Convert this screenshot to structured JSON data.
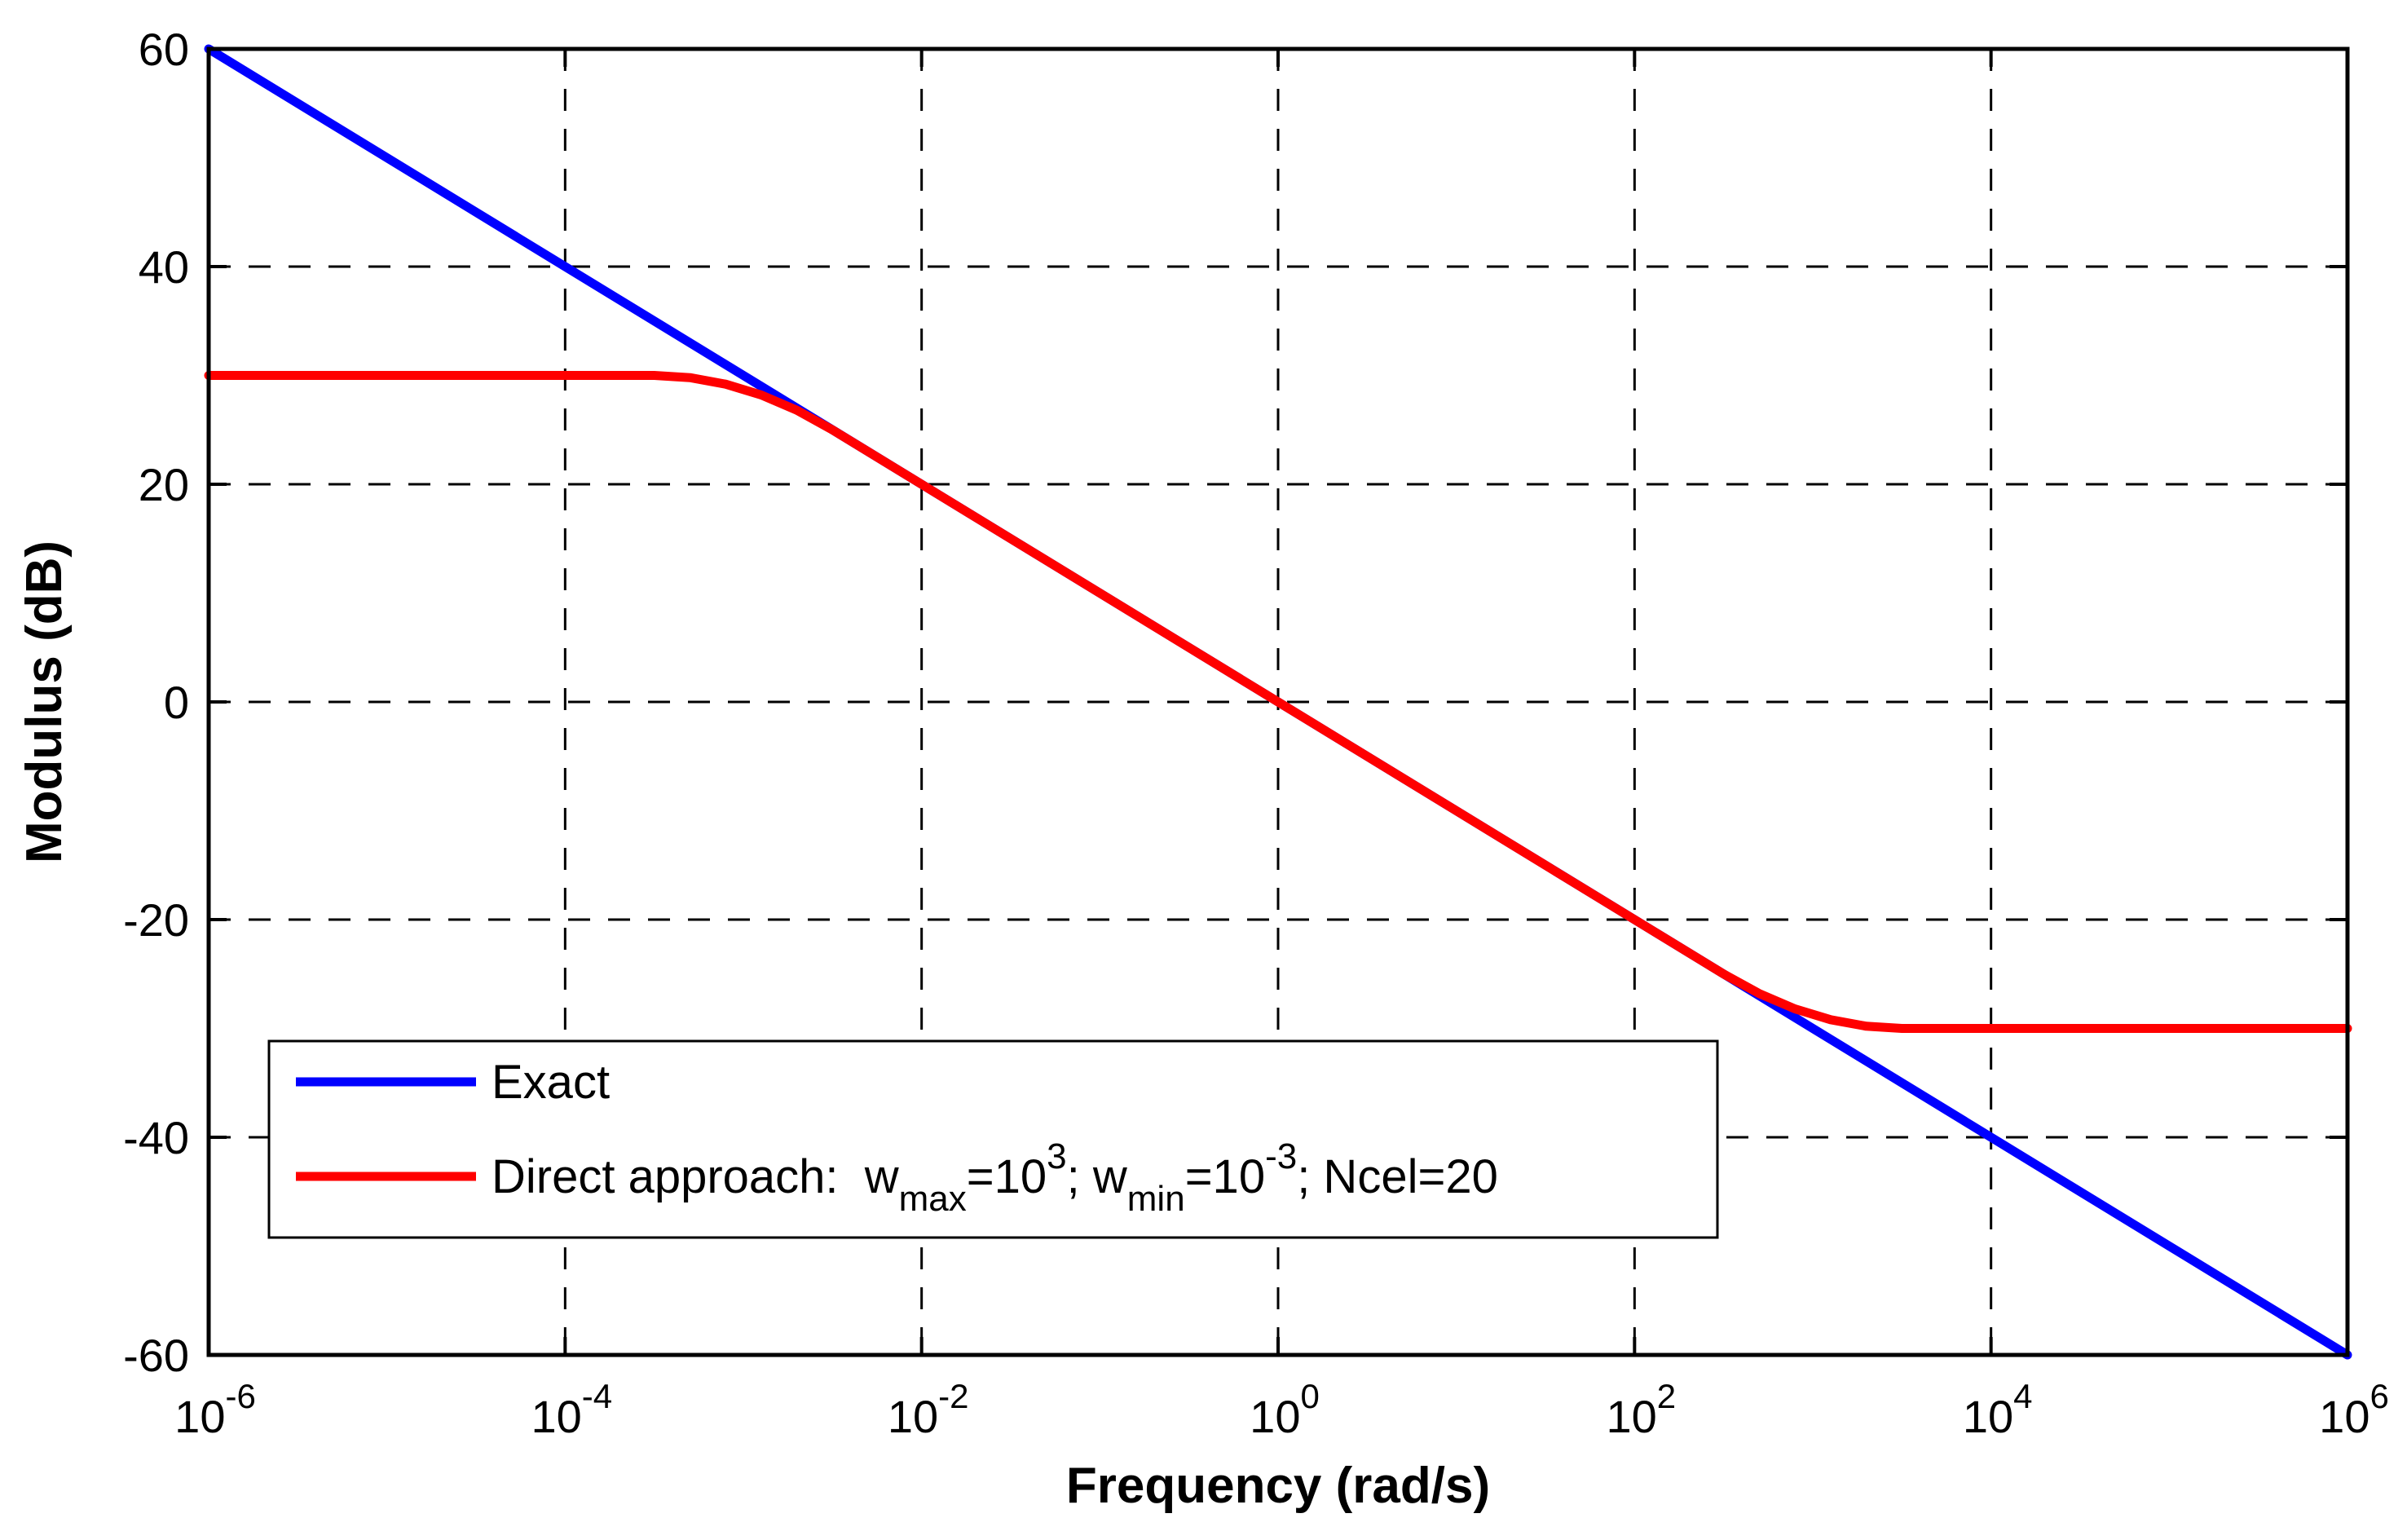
{
  "figure": {
    "background": "#ffffff",
    "axis_color": "#000000",
    "grid_color": "#000000",
    "grid_style": "dashed"
  },
  "chart_data": {
    "type": "line",
    "title": "",
    "xlabel": "Frequency (rad/s)",
    "ylabel": "Modulus (dB)",
    "x_scale": "log10",
    "xlim_exponents": [
      -6,
      6
    ],
    "ylim": [
      -60,
      60
    ],
    "grid": "on",
    "legend_position": "bottom-left",
    "x_ticks": [
      {
        "exponent": -6,
        "mantissa": "10",
        "exp_label": "-6"
      },
      {
        "exponent": -4,
        "mantissa": "10",
        "exp_label": "-4"
      },
      {
        "exponent": -2,
        "mantissa": "10",
        "exp_label": "-2"
      },
      {
        "exponent": 0,
        "mantissa": "10",
        "exp_label": "0"
      },
      {
        "exponent": 2,
        "mantissa": "10",
        "exp_label": "2"
      },
      {
        "exponent": 4,
        "mantissa": "10",
        "exp_label": "4"
      },
      {
        "exponent": 6,
        "mantissa": "10",
        "exp_label": "6"
      }
    ],
    "y_ticks": [
      {
        "value": 60,
        "label": "60"
      },
      {
        "value": 40,
        "label": "40"
      },
      {
        "value": 20,
        "label": "20"
      },
      {
        "value": 0,
        "label": "0"
      },
      {
        "value": -20,
        "label": "-20"
      },
      {
        "value": -40,
        "label": "-40"
      },
      {
        "value": -60,
        "label": "-60"
      }
    ],
    "series": [
      {
        "name": "exact",
        "color": "#0000ff",
        "slope_db_per_decade": -10,
        "points_logw_db": [
          [
            -6,
            60
          ],
          [
            6,
            -60
          ]
        ]
      },
      {
        "name": "direct-approach",
        "color": "#ff0000",
        "plateau_low_db": 30,
        "plateau_high_db": -30,
        "points_logw_db": [
          [
            -6,
            30
          ],
          [
            -3.5,
            30
          ],
          [
            -3.3,
            29.8
          ],
          [
            -3.1,
            29.2
          ],
          [
            -2.9,
            28.2
          ],
          [
            -2.7,
            26.8
          ],
          [
            -2.5,
            25
          ],
          [
            0,
            0
          ],
          [
            2.5,
            -25
          ],
          [
            2.7,
            -26.8
          ],
          [
            2.9,
            -28.2
          ],
          [
            3.1,
            -29.2
          ],
          [
            3.3,
            -29.8
          ],
          [
            3.5,
            -30
          ],
          [
            6,
            -30
          ]
        ]
      }
    ]
  },
  "legend": {
    "background": "#ffffff",
    "border_color": "#000000",
    "entries": [
      {
        "name": "exact",
        "color": "#0000ff",
        "label_segments": [
          {
            "text": "Exact"
          }
        ]
      },
      {
        "name": "direct-approach",
        "color": "#ff0000",
        "label_segments": [
          {
            "text": "Direct approach:  w"
          },
          {
            "text": "max",
            "style": "sub"
          },
          {
            "text": "=10"
          },
          {
            "text": "3",
            "style": "sup"
          },
          {
            "text": "; w"
          },
          {
            "text": "min",
            "style": "sub"
          },
          {
            "text": "=10"
          },
          {
            "text": "-3",
            "style": "sup"
          },
          {
            "text": "; Ncel=20"
          }
        ]
      }
    ]
  }
}
